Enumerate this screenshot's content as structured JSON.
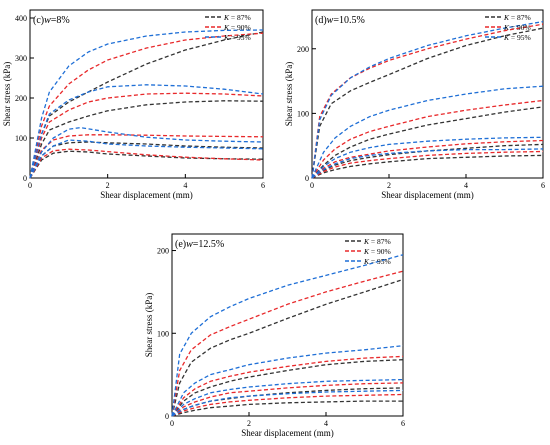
{
  "colors": {
    "k87": "#333333",
    "k90": "#e8292b",
    "k95": "#1f6fd6"
  },
  "legend_prefix": "K",
  "chart_data": [
    {
      "type": "line",
      "panel_label": "(c)",
      "panel_var": "w",
      "panel_value": "=8%",
      "xlabel": "Shear displacement (mm)",
      "ylabel": "Shear stress (kPa)",
      "xlim": [
        0,
        6
      ],
      "ylim": [
        0,
        420
      ],
      "xticks": [
        "0",
        "2",
        "4",
        "6"
      ],
      "yticks": [
        "0",
        "100",
        "200",
        "300",
        "400"
      ],
      "legend": [
        "= 87%",
        "= 90%",
        "= 95%"
      ],
      "legend_position": "top-right",
      "series": [
        {
          "group": "k87",
          "x": [
            0,
            0.3,
            0.5,
            1.0,
            1.5,
            2,
            3,
            4,
            5,
            6
          ],
          "y": [
            0,
            110,
            155,
            190,
            215,
            240,
            285,
            320,
            345,
            365
          ]
        },
        {
          "group": "k87",
          "x": [
            0,
            0.3,
            0.5,
            1.0,
            1.5,
            2,
            3,
            4,
            5,
            6
          ],
          "y": [
            0,
            85,
            120,
            140,
            155,
            168,
            183,
            190,
            193,
            192
          ]
        },
        {
          "group": "k87",
          "x": [
            0,
            0.3,
            0.6,
            1.0,
            1.5,
            2,
            3,
            4,
            5,
            6
          ],
          "y": [
            0,
            55,
            80,
            88,
            90,
            88,
            85,
            80,
            77,
            75
          ]
        },
        {
          "group": "k87",
          "x": [
            0,
            0.3,
            0.6,
            1.0,
            1.5,
            2,
            3,
            4,
            5,
            6
          ],
          "y": [
            0,
            45,
            62,
            67,
            65,
            60,
            55,
            50,
            48,
            47
          ]
        },
        {
          "group": "k90",
          "x": [
            0,
            0.3,
            0.5,
            1.0,
            1.5,
            2,
            3,
            4,
            5,
            6
          ],
          "y": [
            0,
            130,
            180,
            235,
            270,
            295,
            325,
            345,
            355,
            362
          ]
        },
        {
          "group": "k90",
          "x": [
            0,
            0.3,
            0.5,
            1.0,
            1.5,
            2,
            3,
            4,
            5,
            6
          ],
          "y": [
            0,
            100,
            140,
            170,
            190,
            200,
            210,
            212,
            210,
            205
          ]
        },
        {
          "group": "k90",
          "x": [
            0,
            0.3,
            0.6,
            1.0,
            1.5,
            2,
            3,
            4,
            5,
            6
          ],
          "y": [
            0,
            70,
            95,
            105,
            108,
            108,
            107,
            105,
            104,
            103
          ]
        },
        {
          "group": "k90",
          "x": [
            0,
            0.3,
            0.6,
            1.0,
            1.5,
            2,
            3,
            4,
            5,
            6
          ],
          "y": [
            0,
            50,
            68,
            72,
            70,
            66,
            58,
            52,
            48,
            45
          ]
        },
        {
          "group": "k95",
          "x": [
            0,
            0.3,
            0.5,
            1.0,
            1.5,
            2,
            3,
            4,
            5,
            6
          ],
          "y": [
            0,
            150,
            215,
            280,
            315,
            335,
            355,
            365,
            369,
            370
          ]
        },
        {
          "group": "k95",
          "x": [
            0,
            0.3,
            0.5,
            1.0,
            1.5,
            2,
            3,
            4,
            5,
            6
          ],
          "y": [
            0,
            110,
            160,
            195,
            215,
            228,
            233,
            230,
            222,
            210
          ]
        },
        {
          "group": "k95",
          "x": [
            0,
            0.3,
            0.6,
            1.0,
            1.3,
            2,
            3,
            4,
            5,
            6
          ],
          "y": [
            0,
            65,
            100,
            122,
            126,
            115,
            102,
            95,
            92,
            90
          ]
        },
        {
          "group": "k95",
          "x": [
            0,
            0.3,
            0.6,
            1.0,
            1.5,
            2,
            3,
            4,
            5,
            6
          ],
          "y": [
            0,
            55,
            80,
            95,
            92,
            85,
            80,
            77,
            75,
            73
          ]
        }
      ]
    },
    {
      "type": "line",
      "panel_label": "(d)",
      "panel_var": "w",
      "panel_value": "=10.5%",
      "xlabel": "Shear displacement (mm)",
      "ylabel": "Shear stress (kPa)",
      "xlim": [
        0,
        6
      ],
      "ylim": [
        0,
        260
      ],
      "xticks": [
        "0",
        "2",
        "4",
        "6"
      ],
      "yticks": [
        "0",
        "100",
        "200"
      ],
      "legend": [
        "= 87%",
        "= 90%",
        "= 95%"
      ],
      "legend_position": "top-right",
      "series": [
        {
          "group": "k87",
          "x": [
            0,
            0.2,
            0.5,
            1.0,
            1.5,
            2,
            3,
            4,
            5,
            6
          ],
          "y": [
            0,
            80,
            115,
            135,
            148,
            160,
            185,
            205,
            220,
            232
          ]
        },
        {
          "group": "k87",
          "x": [
            0,
            0.3,
            0.6,
            1.0,
            1.5,
            2,
            3,
            4,
            5,
            6
          ],
          "y": [
            0,
            20,
            35,
            48,
            60,
            68,
            82,
            92,
            102,
            110
          ]
        },
        {
          "group": "k87",
          "x": [
            0,
            0.3,
            0.6,
            1.0,
            1.5,
            2,
            3,
            4,
            5,
            6
          ],
          "y": [
            0,
            12,
            20,
            27,
            32,
            36,
            42,
            46,
            50,
            52
          ]
        },
        {
          "group": "k87",
          "x": [
            0,
            0.3,
            0.6,
            1.0,
            1.5,
            2,
            3,
            4,
            5,
            6
          ],
          "y": [
            0,
            8,
            13,
            18,
            22,
            25,
            30,
            32,
            34,
            35
          ]
        },
        {
          "group": "k90",
          "x": [
            0,
            0.2,
            0.5,
            1.0,
            1.5,
            2,
            3,
            4,
            5,
            6
          ],
          "y": [
            0,
            95,
            130,
            155,
            170,
            182,
            200,
            215,
            228,
            238
          ]
        },
        {
          "group": "k90",
          "x": [
            0,
            0.3,
            0.6,
            1.0,
            1.5,
            2,
            3,
            4,
            5,
            6
          ],
          "y": [
            0,
            28,
            45,
            60,
            72,
            80,
            95,
            105,
            113,
            120
          ]
        },
        {
          "group": "k90",
          "x": [
            0,
            0.3,
            0.6,
            1.0,
            1.5,
            2,
            3,
            4,
            5,
            6
          ],
          "y": [
            0,
            15,
            25,
            32,
            37,
            42,
            48,
            53,
            56,
            58
          ]
        },
        {
          "group": "k90",
          "x": [
            0,
            0.3,
            0.6,
            1.0,
            1.5,
            2,
            3,
            4,
            5,
            6
          ],
          "y": [
            0,
            10,
            17,
            23,
            27,
            30,
            35,
            38,
            40,
            41
          ]
        },
        {
          "group": "k95",
          "x": [
            0,
            0.2,
            0.5,
            1.0,
            1.5,
            2,
            3,
            4,
            5,
            6
          ],
          "y": [
            0,
            90,
            128,
            155,
            172,
            185,
            205,
            220,
            232,
            242
          ]
        },
        {
          "group": "k95",
          "x": [
            0,
            0.3,
            0.6,
            1.0,
            1.5,
            2,
            3,
            4,
            5,
            6
          ],
          "y": [
            0,
            40,
            62,
            80,
            95,
            105,
            120,
            130,
            138,
            142
          ]
        },
        {
          "group": "k95",
          "x": [
            0,
            0.3,
            0.6,
            1.0,
            1.5,
            2,
            3,
            4,
            5,
            6
          ],
          "y": [
            0,
            18,
            30,
            40,
            47,
            52,
            57,
            60,
            62,
            63
          ]
        },
        {
          "group": "k95",
          "x": [
            0,
            0.3,
            0.6,
            1.0,
            1.5,
            2,
            3,
            4,
            5,
            6
          ],
          "y": [
            0,
            13,
            22,
            30,
            35,
            38,
            42,
            44,
            44,
            45
          ]
        }
      ]
    },
    {
      "type": "line",
      "panel_label": "(e)",
      "panel_var": "w",
      "panel_value": "=12.5%",
      "xlabel": "Shear displacement (mm)",
      "ylabel": "Shear stress (kPa)",
      "xlim": [
        0,
        6
      ],
      "ylim": [
        0,
        220
      ],
      "xticks": [
        "0",
        "2",
        "4",
        "6"
      ],
      "yticks": [
        "0",
        "100",
        "200"
      ],
      "legend": [
        "= 87%",
        "= 90%",
        "= 95%"
      ],
      "legend_position": "top-right",
      "series": [
        {
          "group": "k87",
          "x": [
            0,
            0.2,
            0.5,
            1.0,
            1.5,
            2,
            3,
            4,
            5,
            6
          ],
          "y": [
            0,
            40,
            65,
            82,
            92,
            100,
            118,
            135,
            150,
            165
          ]
        },
        {
          "group": "k87",
          "x": [
            0,
            0.3,
            0.6,
            1.0,
            1.5,
            2,
            3,
            4,
            5,
            6
          ],
          "y": [
            0,
            18,
            28,
            35,
            42,
            47,
            55,
            62,
            66,
            68
          ]
        },
        {
          "group": "k87",
          "x": [
            0,
            0.3,
            0.6,
            1.0,
            1.5,
            2,
            3,
            4,
            5,
            6
          ],
          "y": [
            0,
            8,
            13,
            18,
            21,
            24,
            28,
            31,
            33,
            34
          ]
        },
        {
          "group": "k87",
          "x": [
            0,
            0.3,
            0.6,
            1.0,
            1.5,
            2,
            3,
            4,
            5,
            6
          ],
          "y": [
            0,
            4,
            7,
            10,
            12,
            14,
            16,
            17,
            18,
            18
          ]
        },
        {
          "group": "k90",
          "x": [
            0,
            0.2,
            0.5,
            1.0,
            1.5,
            2,
            3,
            4,
            5,
            6
          ],
          "y": [
            0,
            55,
            80,
            98,
            108,
            117,
            135,
            150,
            163,
            175
          ]
        },
        {
          "group": "k90",
          "x": [
            0,
            0.3,
            0.6,
            1.0,
            1.5,
            2,
            3,
            4,
            5,
            6
          ],
          "y": [
            0,
            22,
            33,
            42,
            48,
            53,
            60,
            66,
            70,
            72
          ]
        },
        {
          "group": "k90",
          "x": [
            0,
            0.3,
            0.6,
            1.0,
            1.5,
            2,
            3,
            4,
            5,
            6
          ],
          "y": [
            0,
            11,
            17,
            23,
            28,
            30,
            34,
            37,
            39,
            40
          ]
        },
        {
          "group": "k90",
          "x": [
            0,
            0.3,
            0.6,
            1.0,
            1.5,
            2,
            3,
            4,
            5,
            6
          ],
          "y": [
            0,
            6,
            10,
            14,
            17,
            19,
            22,
            24,
            25,
            26
          ]
        },
        {
          "group": "k95",
          "x": [
            0,
            0.2,
            0.5,
            1.0,
            1.5,
            2,
            3,
            4,
            5,
            6
          ],
          "y": [
            0,
            75,
            100,
            120,
            132,
            142,
            158,
            170,
            182,
            195
          ]
        },
        {
          "group": "k95",
          "x": [
            0,
            0.3,
            0.6,
            1.0,
            1.5,
            2,
            3,
            4,
            5,
            6
          ],
          "y": [
            0,
            28,
            40,
            50,
            56,
            62,
            70,
            76,
            80,
            85
          ]
        },
        {
          "group": "k95",
          "x": [
            0,
            0.3,
            0.6,
            1.0,
            1.5,
            2,
            3,
            4,
            5,
            6
          ],
          "y": [
            0,
            14,
            21,
            28,
            32,
            35,
            39,
            42,
            43,
            44
          ]
        },
        {
          "group": "k95",
          "x": [
            0,
            0.3,
            0.6,
            1.0,
            1.5,
            2,
            3,
            4,
            5,
            6
          ],
          "y": [
            0,
            8,
            13,
            18,
            22,
            24,
            27,
            29,
            30,
            31
          ]
        }
      ]
    }
  ]
}
